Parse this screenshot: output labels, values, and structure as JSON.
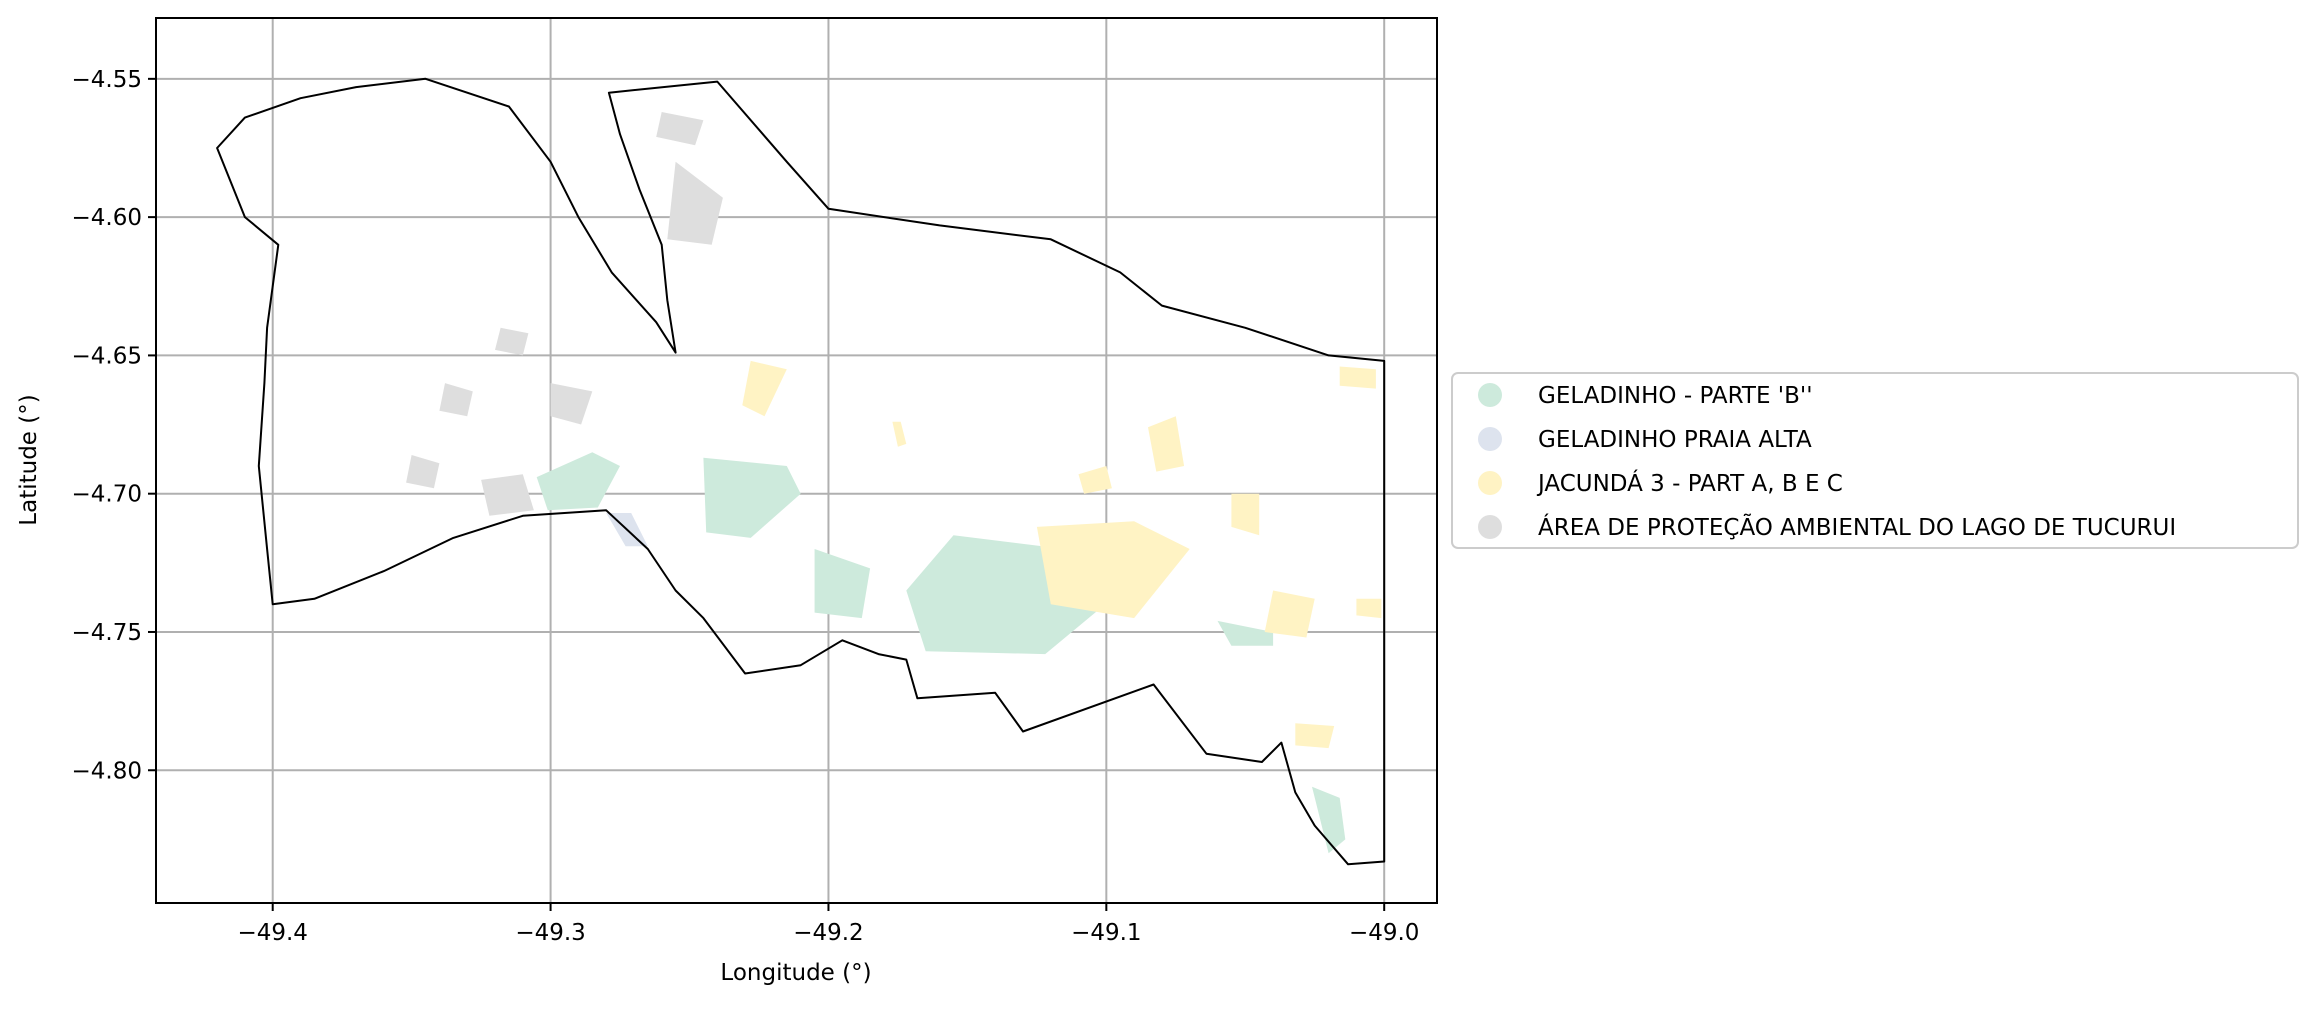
{
  "chart_data": {
    "type": "map",
    "xlabel": "Longitude (°)",
    "ylabel": "Latitude (°)",
    "xlim": [
      -49.442,
      -48.981
    ],
    "ylim": [
      -4.848,
      -4.528
    ],
    "xticks": [
      -49.4,
      -49.3,
      -49.2,
      -49.1,
      -49.0
    ],
    "yticks": [
      -4.55,
      -4.6,
      -4.65,
      -4.7,
      -4.75,
      -4.8
    ],
    "xtick_labels": [
      "−49.4",
      "−49.3",
      "−49.2",
      "−49.1",
      "−49.0"
    ],
    "ytick_labels": [
      "−4.55",
      "−4.60",
      "−4.65",
      "−4.70",
      "−4.75",
      "−4.80"
    ],
    "grid": true,
    "legend_position": "right, outside plot",
    "legend": [
      {
        "label": "GELADINHO - PARTE 'B''",
        "color": "#cdeadc"
      },
      {
        "label": "GELADINHO PRAIA ALTA",
        "color": "#dde3ee"
      },
      {
        "label": "JACUNDÁ 3 - PART A, B E C",
        "color": "#fff3c4"
      },
      {
        "label": "ÁREA DE PROTEÇÃO AMBIENTAL DO LAGO DE TUCURUI",
        "color": "#dedede"
      }
    ],
    "boundary_outline": [
      [
        -49.279,
        -4.555
      ],
      [
        -49.24,
        -4.551
      ],
      [
        -49.215,
        -4.58
      ],
      [
        -49.2,
        -4.597
      ],
      [
        -49.16,
        -4.603
      ],
      [
        -49.12,
        -4.608
      ],
      [
        -49.095,
        -4.62
      ],
      [
        -49.08,
        -4.632
      ],
      [
        -49.05,
        -4.64
      ],
      [
        -49.02,
        -4.65
      ],
      [
        -49.0,
        -4.652
      ],
      [
        -49.0,
        -4.833
      ],
      [
        -49.013,
        -4.834
      ],
      [
        -49.025,
        -4.82
      ],
      [
        -49.032,
        -4.808
      ],
      [
        -49.037,
        -4.79
      ],
      [
        -49.044,
        -4.797
      ],
      [
        -49.064,
        -4.794
      ],
      [
        -49.083,
        -4.769
      ],
      [
        -49.13,
        -4.786
      ],
      [
        -49.14,
        -4.772
      ],
      [
        -49.168,
        -4.774
      ],
      [
        -49.172,
        -4.76
      ],
      [
        -49.182,
        -4.758
      ],
      [
        -49.195,
        -4.753
      ],
      [
        -49.21,
        -4.762
      ],
      [
        -49.23,
        -4.765
      ],
      [
        -49.245,
        -4.745
      ],
      [
        -49.255,
        -4.735
      ],
      [
        -49.265,
        -4.72
      ],
      [
        -49.28,
        -4.706
      ],
      [
        -49.31,
        -4.708
      ],
      [
        -49.335,
        -4.716
      ],
      [
        -49.36,
        -4.728
      ],
      [
        -49.385,
        -4.738
      ],
      [
        -49.4,
        -4.74
      ],
      [
        -49.402,
        -4.72
      ],
      [
        -49.405,
        -4.69
      ],
      [
        -49.403,
        -4.66
      ],
      [
        -49.402,
        -4.64
      ],
      [
        -49.398,
        -4.61
      ],
      [
        -49.41,
        -4.6
      ],
      [
        -49.42,
        -4.575
      ],
      [
        -49.41,
        -4.564
      ],
      [
        -49.39,
        -4.557
      ],
      [
        -49.37,
        -4.553
      ],
      [
        -49.345,
        -4.55
      ],
      [
        -49.315,
        -4.56
      ],
      [
        -49.3,
        -4.58
      ],
      [
        -49.29,
        -4.6
      ],
      [
        -49.278,
        -4.62
      ],
      [
        -49.262,
        -4.638
      ],
      [
        -49.255,
        -4.649
      ],
      [
        -49.258,
        -4.63
      ],
      [
        -49.26,
        -4.61
      ],
      [
        -49.268,
        -4.59
      ],
      [
        -49.275,
        -4.57
      ]
    ],
    "series": [
      {
        "name": "GELADINHO - PARTE 'B''",
        "polygons": [
          [
            [
              -49.305,
              -4.694
            ],
            [
              -49.285,
              -4.685
            ],
            [
              -49.275,
              -4.69
            ],
            [
              -49.283,
              -4.705
            ],
            [
              -49.301,
              -4.706
            ]
          ],
          [
            [
              -49.245,
              -4.687
            ],
            [
              -49.215,
              -4.69
            ],
            [
              -49.21,
              -4.7
            ],
            [
              -49.228,
              -4.716
            ],
            [
              -49.244,
              -4.714
            ]
          ],
          [
            [
              -49.205,
              -4.72
            ],
            [
              -49.185,
              -4.727
            ],
            [
              -49.188,
              -4.745
            ],
            [
              -49.205,
              -4.743
            ]
          ],
          [
            [
              -49.155,
              -4.715
            ],
            [
              -49.115,
              -4.72
            ],
            [
              -49.098,
              -4.738
            ],
            [
              -49.122,
              -4.758
            ],
            [
              -49.165,
              -4.757
            ],
            [
              -49.172,
              -4.735
            ]
          ],
          [
            [
              -49.06,
              -4.746
            ],
            [
              -49.04,
              -4.75
            ],
            [
              -49.04,
              -4.755
            ],
            [
              -49.055,
              -4.755
            ]
          ],
          [
            [
              -49.026,
              -4.806
            ],
            [
              -49.016,
              -4.81
            ],
            [
              -49.014,
              -4.825
            ],
            [
              -49.02,
              -4.83
            ]
          ]
        ]
      },
      {
        "name": "GELADINHO PRAIA ALTA",
        "polygons": [
          [
            [
              -49.28,
              -4.707
            ],
            [
              -49.271,
              -4.707
            ],
            [
              -49.265,
              -4.719
            ],
            [
              -49.273,
              -4.719
            ]
          ]
        ]
      },
      {
        "name": "JACUNDÁ 3 - PART A, B E C",
        "polygons": [
          [
            [
              -49.228,
              -4.652
            ],
            [
              -49.215,
              -4.655
            ],
            [
              -49.223,
              -4.672
            ],
            [
              -49.231,
              -4.668
            ]
          ],
          [
            [
              -49.125,
              -4.712
            ],
            [
              -49.09,
              -4.71
            ],
            [
              -49.07,
              -4.72
            ],
            [
              -49.09,
              -4.745
            ],
            [
              -49.12,
              -4.74
            ]
          ],
          [
            [
              -49.11,
              -4.693
            ],
            [
              -49.1,
              -4.69
            ],
            [
              -49.098,
              -4.698
            ],
            [
              -49.108,
              -4.7
            ]
          ],
          [
            [
              -49.085,
              -4.676
            ],
            [
              -49.075,
              -4.672
            ],
            [
              -49.072,
              -4.69
            ],
            [
              -49.082,
              -4.692
            ]
          ],
          [
            [
              -49.055,
              -4.7
            ],
            [
              -49.045,
              -4.7
            ],
            [
              -49.045,
              -4.715
            ],
            [
              -49.055,
              -4.712
            ]
          ],
          [
            [
              -49.04,
              -4.735
            ],
            [
              -49.025,
              -4.738
            ],
            [
              -49.028,
              -4.752
            ],
            [
              -49.043,
              -4.75
            ]
          ],
          [
            [
              -49.016,
              -4.654
            ],
            [
              -49.003,
              -4.655
            ],
            [
              -49.003,
              -4.662
            ],
            [
              -49.016,
              -4.661
            ]
          ],
          [
            [
              -49.032,
              -4.783
            ],
            [
              -49.018,
              -4.784
            ],
            [
              -49.02,
              -4.792
            ],
            [
              -49.032,
              -4.791
            ]
          ],
          [
            [
              -49.01,
              -4.738
            ],
            [
              -49.001,
              -4.738
            ],
            [
              -49.001,
              -4.745
            ],
            [
              -49.01,
              -4.744
            ]
          ],
          [
            [
              -49.177,
              -4.674
            ],
            [
              -49.174,
              -4.674
            ],
            [
              -49.172,
              -4.682
            ],
            [
              -49.175,
              -4.683
            ]
          ]
        ]
      },
      {
        "name": "ÁREA DE PROTEÇÃO AMBIENTAL DO LAGO DE TUCURUI",
        "polygons": [
          [
            [
              -49.255,
              -4.58
            ],
            [
              -49.238,
              -4.593
            ],
            [
              -49.242,
              -4.61
            ],
            [
              -49.258,
              -4.608
            ]
          ],
          [
            [
              -49.26,
              -4.562
            ],
            [
              -49.245,
              -4.565
            ],
            [
              -49.248,
              -4.574
            ],
            [
              -49.262,
              -4.571
            ]
          ],
          [
            [
              -49.338,
              -4.66
            ],
            [
              -49.328,
              -4.663
            ],
            [
              -49.33,
              -4.672
            ],
            [
              -49.34,
              -4.67
            ]
          ],
          [
            [
              -49.3,
              -4.66
            ],
            [
              -49.285,
              -4.663
            ],
            [
              -49.289,
              -4.675
            ],
            [
              -49.3,
              -4.672
            ]
          ],
          [
            [
              -49.325,
              -4.695
            ],
            [
              -49.31,
              -4.693
            ],
            [
              -49.306,
              -4.706
            ],
            [
              -49.322,
              -4.708
            ]
          ],
          [
            [
              -49.35,
              -4.686
            ],
            [
              -49.34,
              -4.689
            ],
            [
              -49.342,
              -4.698
            ],
            [
              -49.352,
              -4.696
            ]
          ],
          [
            [
              -49.318,
              -4.64
            ],
            [
              -49.308,
              -4.642
            ],
            [
              -49.31,
              -4.65
            ],
            [
              -49.32,
              -4.648
            ]
          ]
        ]
      }
    ]
  }
}
